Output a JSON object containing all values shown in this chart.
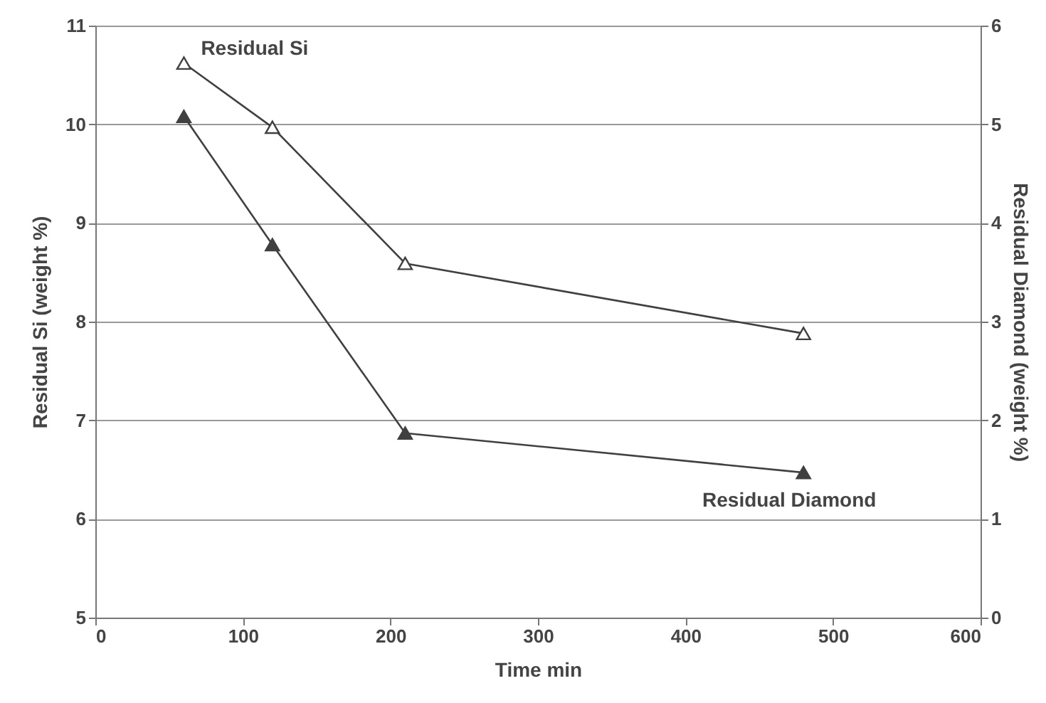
{
  "chart_data": {
    "type": "line",
    "xlabel": "Time min",
    "ylabel": "Residual Si (weight %)",
    "y2label": "Residual Diamond (weight %)",
    "x": [
      60,
      120,
      210,
      480
    ],
    "series": [
      {
        "name": "Residual Si",
        "color": "#404040",
        "values": [
          10.62,
          9.97,
          8.59,
          7.88
        ]
      },
      {
        "name": "Residual Diamond",
        "color": "#404040",
        "values": [
          5.08,
          3.78,
          1.87,
          1.47
        ],
        "axis": "y2"
      }
    ],
    "xlim": [
      0,
      600
    ],
    "xticks": [
      0,
      100,
      200,
      300,
      400,
      500,
      600
    ],
    "ylim": [
      5,
      11
    ],
    "yticks": [
      5,
      6,
      7,
      8,
      9,
      10,
      11
    ],
    "y2lim": [
      0,
      6
    ],
    "y2ticks": [
      0,
      1,
      2,
      3,
      4,
      5,
      6
    ],
    "grid": "y",
    "marker": "triangle",
    "line_style": "solid"
  }
}
